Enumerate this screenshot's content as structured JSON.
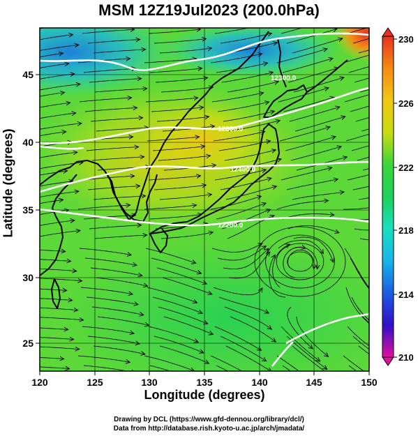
{
  "title": "MSM 12Z19Jul2023 (200.0hPa)",
  "axes": {
    "xlabel": "Longitude (degrees)",
    "ylabel": "Latitude  (degrees)",
    "x_ticks": [
      "120",
      "125",
      "130",
      "135",
      "140",
      "145",
      "150"
    ],
    "y_ticks": [
      "25",
      "30",
      "35",
      "40",
      "45"
    ],
    "xlim": [
      120,
      150
    ],
    "ylim": [
      22.4,
      47.6
    ]
  },
  "colorbar": {
    "ticks": [
      "230",
      "226",
      "222",
      "218",
      "214",
      "210"
    ],
    "range": [
      210,
      230
    ],
    "colors": [
      "#e0109e",
      "#9a10b8",
      "#3010c8",
      "#1a5ce0",
      "#19b4e8",
      "#19e0c0",
      "#1ed05a",
      "#3cd63c",
      "#8cdc28",
      "#c8dc14",
      "#f0c814",
      "#f58c14",
      "#e6321e"
    ]
  },
  "contour_labels": [
    "12300.0",
    "12300.0",
    "12400.0",
    "12200.0"
  ],
  "credits": {
    "line1": "Drawing by DCL (https://www.gfd-dennou.org/library/dcl/)",
    "line2": "Data from http://database.rish.kyoto-u.ac.jp/arch/jmadata/"
  }
}
